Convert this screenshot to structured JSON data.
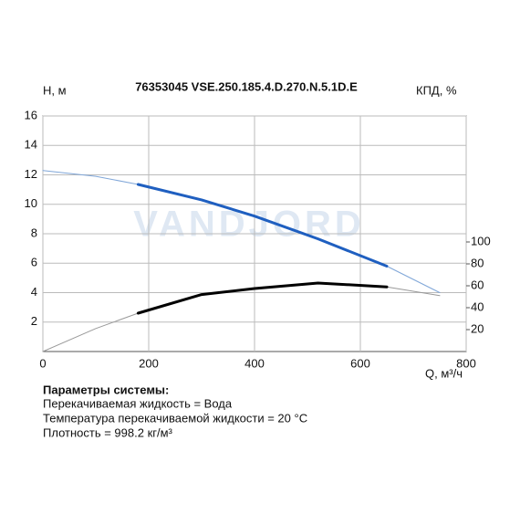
{
  "chart_data": {
    "type": "line",
    "title": "76353045 VSE.250.185.4.D.270.N.5.1D.E",
    "y_label": "H, м",
    "y2_label": "КПД, %",
    "x_label": "Q, м³/ч",
    "watermark": "VANDJORD",
    "xlim": [
      0,
      800
    ],
    "xticks": [
      0,
      200,
      400,
      600,
      800
    ],
    "ylim": [
      0,
      16
    ],
    "yticks": [
      2,
      4,
      6,
      8,
      10,
      12,
      14,
      16
    ],
    "y2lim": [
      0,
      215
    ],
    "y2ticks": [
      20,
      40,
      60,
      80,
      100
    ],
    "grid": true,
    "series": [
      {
        "color": "#7fa6d8",
        "width": 1,
        "x": [
          0,
          100,
          180,
          300,
          400,
          520,
          650,
          750
        ],
        "values": [
          12.3,
          11.9,
          11.35,
          10.3,
          9.2,
          7.65,
          5.8,
          4.0
        ]
      },
      {
        "color": "#1f5fc0",
        "width": 3,
        "x": [
          180,
          300,
          400,
          520,
          650
        ],
        "values": [
          11.35,
          10.3,
          9.2,
          7.65,
          5.8
        ]
      },
      {
        "color": "#999999",
        "width": 1,
        "axis": "y2",
        "x": [
          0,
          100,
          180,
          300,
          400,
          520,
          650,
          750
        ],
        "values": [
          0,
          21,
          35,
          52,
          57.5,
          62.5,
          59,
          51
        ]
      },
      {
        "color": "#000000",
        "width": 3,
        "axis": "y2",
        "x": [
          180,
          300,
          400,
          520,
          650
        ],
        "values": [
          35,
          52,
          57.5,
          62.5,
          59
        ]
      }
    ],
    "notes": [
      "Параметры системы:",
      "Перекачиваемая жидкость = Вода",
      "Температура перекачиваемой жидкости = 20 °C",
      "Плотность = 998.2 кг/м³"
    ]
  }
}
